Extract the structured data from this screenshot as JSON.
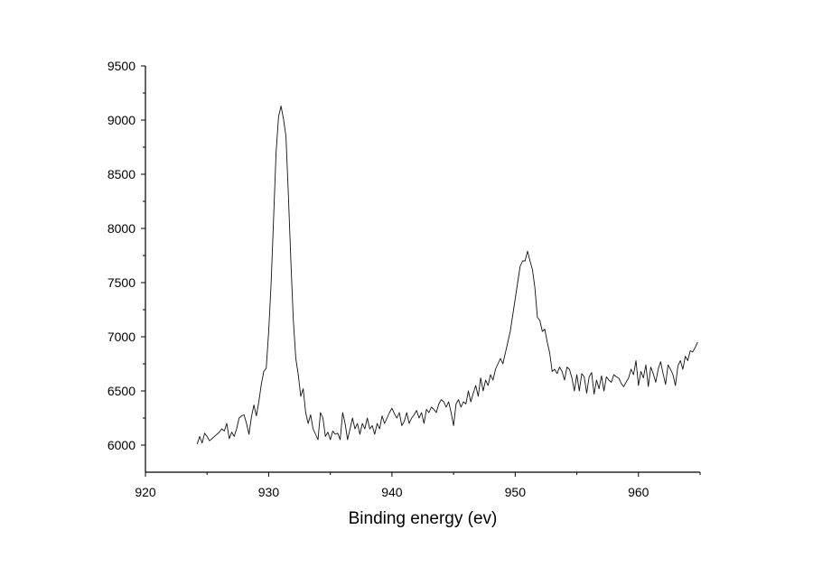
{
  "chart_data": {
    "type": "line",
    "title": "",
    "xlabel": "Binding energy (ev)",
    "ylabel": "",
    "xlim": [
      920,
      965
    ],
    "ylim": [
      5750,
      9500
    ],
    "x_ticks": [
      920,
      930,
      940,
      950,
      960
    ],
    "y_ticks": [
      6000,
      6500,
      7000,
      7500,
      8000,
      8500,
      9000,
      9500
    ],
    "grid": false,
    "legend": "none",
    "series": [
      {
        "color": "#111111",
        "points": [
          [
            924.2,
            6010
          ],
          [
            924.4,
            6080
          ],
          [
            924.6,
            6020
          ],
          [
            924.8,
            6110
          ],
          [
            925.0,
            6080
          ],
          [
            925.2,
            6040
          ],
          [
            925.4,
            6060
          ],
          [
            925.7,
            6090
          ],
          [
            926.0,
            6120
          ],
          [
            926.2,
            6150
          ],
          [
            926.4,
            6130
          ],
          [
            926.6,
            6200
          ],
          [
            926.8,
            6060
          ],
          [
            927.0,
            6120
          ],
          [
            927.2,
            6080
          ],
          [
            927.4,
            6150
          ],
          [
            927.6,
            6250
          ],
          [
            927.8,
            6270
          ],
          [
            928.0,
            6280
          ],
          [
            928.2,
            6200
          ],
          [
            928.4,
            6100
          ],
          [
            928.6,
            6260
          ],
          [
            928.8,
            6370
          ],
          [
            929.0,
            6270
          ],
          [
            929.2,
            6400
          ],
          [
            929.4,
            6560
          ],
          [
            929.6,
            6680
          ],
          [
            929.8,
            6710
          ],
          [
            930.0,
            7050
          ],
          [
            930.2,
            7500
          ],
          [
            930.4,
            8100
          ],
          [
            930.6,
            8700
          ],
          [
            930.8,
            9030
          ],
          [
            931.0,
            9130
          ],
          [
            931.2,
            9010
          ],
          [
            931.4,
            8850
          ],
          [
            931.6,
            8300
          ],
          [
            931.8,
            7700
          ],
          [
            932.0,
            7150
          ],
          [
            932.2,
            6800
          ],
          [
            932.4,
            6650
          ],
          [
            932.6,
            6450
          ],
          [
            932.8,
            6520
          ],
          [
            933.0,
            6300
          ],
          [
            933.2,
            6200
          ],
          [
            933.4,
            6280
          ],
          [
            933.6,
            6150
          ],
          [
            933.8,
            6100
          ],
          [
            934.0,
            6050
          ],
          [
            934.2,
            6300
          ],
          [
            934.4,
            6250
          ],
          [
            934.6,
            6080
          ],
          [
            934.8,
            6120
          ],
          [
            935.0,
            6050
          ],
          [
            935.2,
            6130
          ],
          [
            935.4,
            6100
          ],
          [
            935.6,
            6110
          ],
          [
            935.8,
            6050
          ],
          [
            936.0,
            6300
          ],
          [
            936.2,
            6200
          ],
          [
            936.4,
            6050
          ],
          [
            936.6,
            6150
          ],
          [
            936.8,
            6250
          ],
          [
            937.0,
            6150
          ],
          [
            937.2,
            6200
          ],
          [
            937.4,
            6100
          ],
          [
            937.6,
            6200
          ],
          [
            937.8,
            6150
          ],
          [
            938.0,
            6250
          ],
          [
            938.2,
            6150
          ],
          [
            938.4,
            6180
          ],
          [
            938.6,
            6100
          ],
          [
            938.8,
            6200
          ],
          [
            939.0,
            6150
          ],
          [
            939.2,
            6270
          ],
          [
            939.4,
            6200
          ],
          [
            939.6,
            6250
          ],
          [
            939.8,
            6300
          ],
          [
            940.0,
            6340
          ],
          [
            940.2,
            6290
          ],
          [
            940.4,
            6250
          ],
          [
            940.6,
            6300
          ],
          [
            940.8,
            6180
          ],
          [
            941.0,
            6220
          ],
          [
            941.2,
            6300
          ],
          [
            941.4,
            6200
          ],
          [
            941.6,
            6250
          ],
          [
            941.8,
            6280
          ],
          [
            942.0,
            6320
          ],
          [
            942.2,
            6250
          ],
          [
            942.4,
            6300
          ],
          [
            942.6,
            6200
          ],
          [
            942.8,
            6330
          ],
          [
            943.0,
            6300
          ],
          [
            943.2,
            6350
          ],
          [
            943.4,
            6330
          ],
          [
            943.6,
            6300
          ],
          [
            943.8,
            6380
          ],
          [
            944.0,
            6420
          ],
          [
            944.2,
            6400
          ],
          [
            944.4,
            6350
          ],
          [
            944.6,
            6400
          ],
          [
            944.8,
            6300
          ],
          [
            945.0,
            6180
          ],
          [
            945.2,
            6380
          ],
          [
            945.4,
            6420
          ],
          [
            945.6,
            6350
          ],
          [
            945.8,
            6400
          ],
          [
            946.0,
            6380
          ],
          [
            946.2,
            6500
          ],
          [
            946.4,
            6400
          ],
          [
            946.6,
            6480
          ],
          [
            946.8,
            6550
          ],
          [
            947.0,
            6450
          ],
          [
            947.2,
            6620
          ],
          [
            947.4,
            6500
          ],
          [
            947.6,
            6600
          ],
          [
            947.8,
            6550
          ],
          [
            948.0,
            6650
          ],
          [
            948.2,
            6600
          ],
          [
            948.4,
            6700
          ],
          [
            948.6,
            6750
          ],
          [
            948.8,
            6800
          ],
          [
            949.0,
            6750
          ],
          [
            949.2,
            6850
          ],
          [
            949.4,
            6950
          ],
          [
            949.6,
            7050
          ],
          [
            949.8,
            7200
          ],
          [
            950.0,
            7350
          ],
          [
            950.2,
            7500
          ],
          [
            950.4,
            7650
          ],
          [
            950.6,
            7700
          ],
          [
            950.8,
            7700
          ],
          [
            951.0,
            7790
          ],
          [
            951.2,
            7700
          ],
          [
            951.4,
            7620
          ],
          [
            951.6,
            7450
          ],
          [
            951.8,
            7180
          ],
          [
            952.0,
            7150
          ],
          [
            952.2,
            7050
          ],
          [
            952.4,
            7070
          ],
          [
            952.6,
            6950
          ],
          [
            952.8,
            6850
          ],
          [
            953.0,
            6680
          ],
          [
            953.2,
            6700
          ],
          [
            953.4,
            6660
          ],
          [
            953.6,
            6720
          ],
          [
            953.8,
            6680
          ],
          [
            954.0,
            6600
          ],
          [
            954.2,
            6720
          ],
          [
            954.4,
            6700
          ],
          [
            954.6,
            6620
          ],
          [
            954.8,
            6500
          ],
          [
            955.0,
            6650
          ],
          [
            955.2,
            6500
          ],
          [
            955.4,
            6660
          ],
          [
            955.6,
            6630
          ],
          [
            955.8,
            6480
          ],
          [
            956.0,
            6630
          ],
          [
            956.2,
            6670
          ],
          [
            956.4,
            6470
          ],
          [
            956.6,
            6600
          ],
          [
            956.8,
            6520
          ],
          [
            957.0,
            6640
          ],
          [
            957.2,
            6500
          ],
          [
            957.4,
            6630
          ],
          [
            957.6,
            6600
          ],
          [
            957.8,
            6580
          ],
          [
            958.0,
            6650
          ],
          [
            958.2,
            6630
          ],
          [
            958.4,
            6620
          ],
          [
            958.6,
            6570
          ],
          [
            958.8,
            6540
          ],
          [
            959.0,
            6580
          ],
          [
            959.2,
            6620
          ],
          [
            959.4,
            6700
          ],
          [
            959.6,
            6650
          ],
          [
            959.8,
            6780
          ],
          [
            960.0,
            6550
          ],
          [
            960.2,
            6680
          ],
          [
            960.4,
            6620
          ],
          [
            960.6,
            6740
          ],
          [
            960.8,
            6540
          ],
          [
            961.0,
            6720
          ],
          [
            961.2,
            6660
          ],
          [
            961.4,
            6580
          ],
          [
            961.6,
            6700
          ],
          [
            961.8,
            6770
          ],
          [
            962.0,
            6660
          ],
          [
            962.2,
            6560
          ],
          [
            962.4,
            6740
          ],
          [
            962.6,
            6700
          ],
          [
            962.8,
            6650
          ],
          [
            963.0,
            6550
          ],
          [
            963.2,
            6730
          ],
          [
            963.4,
            6780
          ],
          [
            963.6,
            6700
          ],
          [
            963.8,
            6820
          ],
          [
            964.0,
            6780
          ],
          [
            964.2,
            6870
          ],
          [
            964.4,
            6860
          ],
          [
            964.6,
            6900
          ],
          [
            964.8,
            6950
          ]
        ]
      }
    ]
  }
}
